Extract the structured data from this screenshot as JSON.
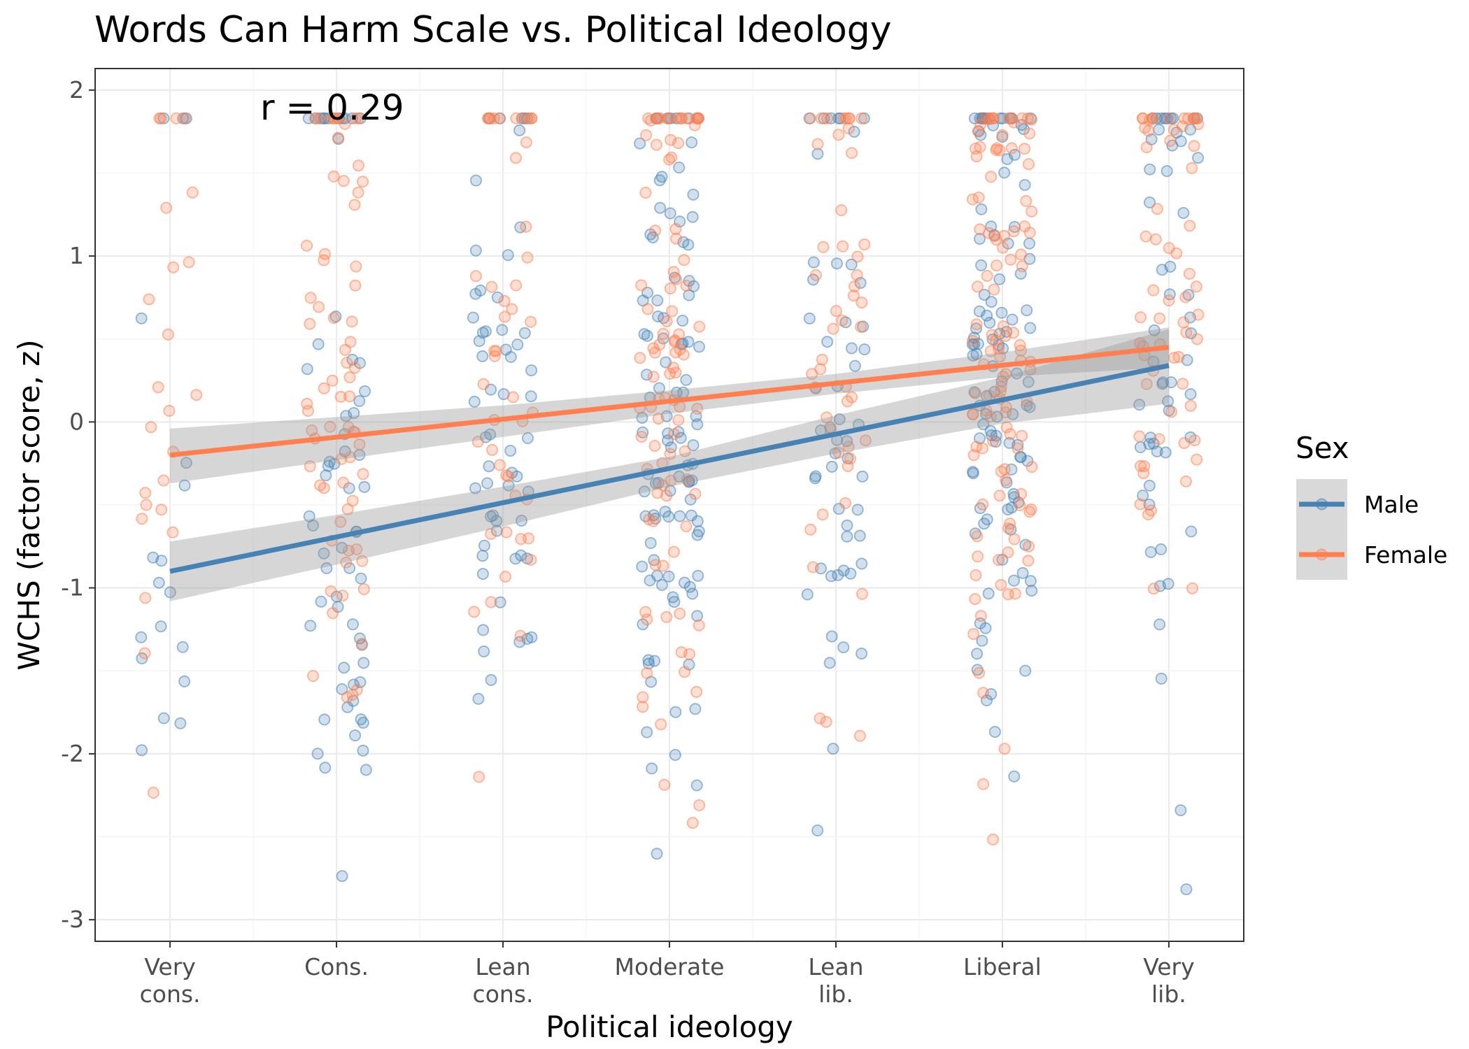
{
  "chart_data": {
    "type": "scatter",
    "title": "Words Can Harm Scale vs. Political Ideology",
    "xlabel": "Political ideology",
    "ylabel": "WCHS (factor score, z)",
    "annotation": "r = 0.29",
    "categories": [
      [
        "Very",
        "cons."
      ],
      [
        "Cons."
      ],
      [
        "Lean",
        "cons."
      ],
      [
        "Moderate"
      ],
      [
        "Lean",
        "lib."
      ],
      [
        "Liberal"
      ],
      [
        "Very",
        "lib."
      ]
    ],
    "x": [
      1,
      2,
      3,
      4,
      5,
      6,
      7
    ],
    "xlim": [
      0.55,
      7.45
    ],
    "ylim": [
      -3.13,
      2.13
    ],
    "yticks": [
      -3,
      -2,
      -1,
      0,
      1,
      2
    ],
    "ytick_labels": [
      "-3",
      "-2",
      "-1",
      "0",
      "1",
      "2"
    ],
    "grid": true,
    "legend": {
      "title": "Sex",
      "position": "right",
      "entries": [
        "Male",
        "Female"
      ]
    },
    "series": [
      {
        "name": "Male",
        "color": "#4682b4",
        "point_alpha": 0.3,
        "n_points": [
          18,
          62,
          58,
          105,
          52,
          110,
          55
        ],
        "fit": {
          "x": [
            1,
            7
          ],
          "y": [
            -0.9,
            0.34
          ]
        },
        "ci_low": [
          -1.08,
          -0.86,
          -0.63,
          -0.39,
          -0.19,
          -0.01,
          0.11
        ],
        "ci_high": [
          -0.72,
          -0.56,
          -0.39,
          -0.21,
          0.04,
          0.27,
          0.56
        ]
      },
      {
        "name": "Female",
        "color": "#ff7f50",
        "point_alpha": 0.3,
        "n_points": [
          24,
          68,
          46,
          95,
          48,
          115,
          62
        ],
        "fit": {
          "x": [
            1,
            7
          ],
          "y": [
            -0.2,
            0.45
          ]
        },
        "ci_low": [
          -0.37,
          -0.23,
          -0.09,
          0.05,
          0.17,
          0.27,
          0.33
        ],
        "ci_high": [
          -0.04,
          0.03,
          0.1,
          0.19,
          0.29,
          0.42,
          0.57
        ]
      }
    ]
  }
}
